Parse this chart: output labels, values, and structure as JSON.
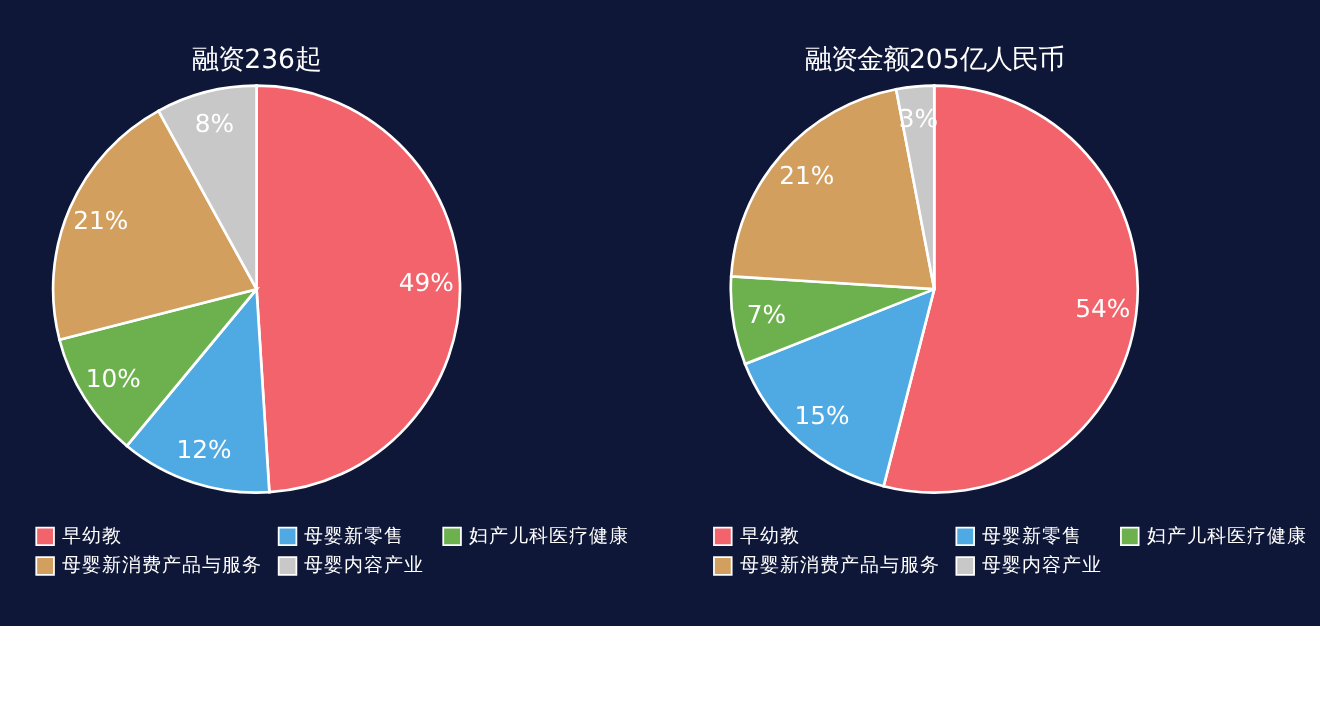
{
  "chart_data": [
    {
      "type": "pie",
      "title": "融资236起",
      "categories": [
        "早幼教",
        "母婴新零售",
        "妇产儿科医疗健康",
        "母婴新消费产品与服务",
        "母婴内容产业"
      ],
      "values": [
        49,
        12,
        10,
        21,
        8
      ],
      "value_labels": [
        "49%",
        "12%",
        "10%",
        "21%",
        "8%"
      ],
      "colors": [
        "#f2636b",
        "#4fa9e2",
        "#6db14f",
        "#d29f5e",
        "#c8c8c8"
      ],
      "legend": "bottom"
    },
    {
      "type": "pie",
      "title": "融资金额205亿人民币",
      "categories": [
        "早幼教",
        "母婴新零售",
        "妇产儿科医疗健康",
        "母婴新消费产品与服务",
        "母婴内容产业"
      ],
      "values": [
        54,
        15,
        7,
        21,
        3
      ],
      "value_labels": [
        "54%",
        "15%",
        "7%",
        "21%",
        "3%"
      ],
      "colors": [
        "#f2636b",
        "#4fa9e2",
        "#6db14f",
        "#d29f5e",
        "#c8c8c8"
      ],
      "legend": "bottom"
    }
  ]
}
